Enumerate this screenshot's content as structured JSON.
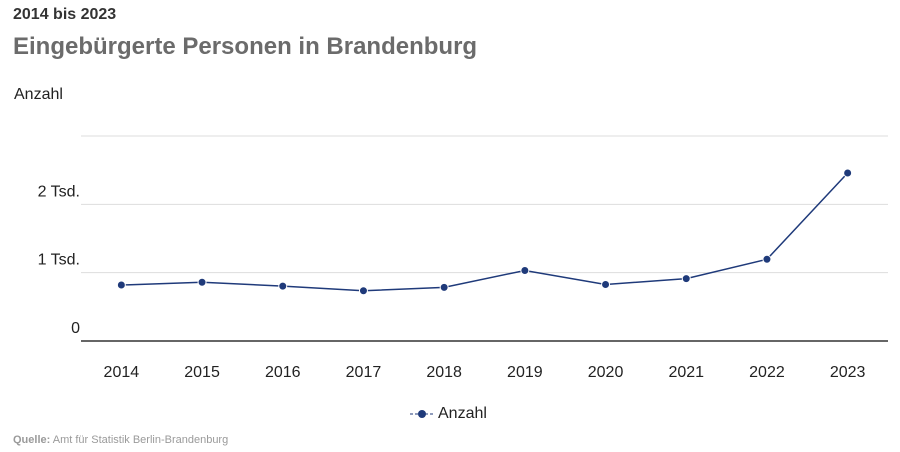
{
  "header": {
    "subtitle": "2014 bis 2023",
    "title": "Eingebürgerte Personen in Brandenburg"
  },
  "source": {
    "label": "Quelle:",
    "text": "Amt für Statistik Berlin-Brandenburg"
  },
  "colors": {
    "series": "#1f3a7a",
    "grid": "#dddddd",
    "axis": "#333333"
  },
  "chart_data": {
    "type": "line",
    "title": "Eingebürgerte Personen in Brandenburg",
    "subtitle": "2014 bis 2023",
    "ylabel": "Anzahl",
    "xlabel": "",
    "x": [
      "2014",
      "2015",
      "2016",
      "2017",
      "2018",
      "2019",
      "2020",
      "2021",
      "2022",
      "2023"
    ],
    "series": [
      {
        "name": "Anzahl",
        "values": [
          819,
          860,
          803,
          735,
          785,
          1032,
          827,
          913,
          1196,
          2459
        ]
      }
    ],
    "ylim": [
      0,
      3000
    ],
    "yticks": [
      {
        "value": 0,
        "label": "0"
      },
      {
        "value": 1000,
        "label": "1 Tsd."
      },
      {
        "value": 2000,
        "label": "2 Tsd."
      },
      {
        "value": 3000,
        "label": ""
      }
    ],
    "grid": true,
    "legend": "bottom-center"
  }
}
